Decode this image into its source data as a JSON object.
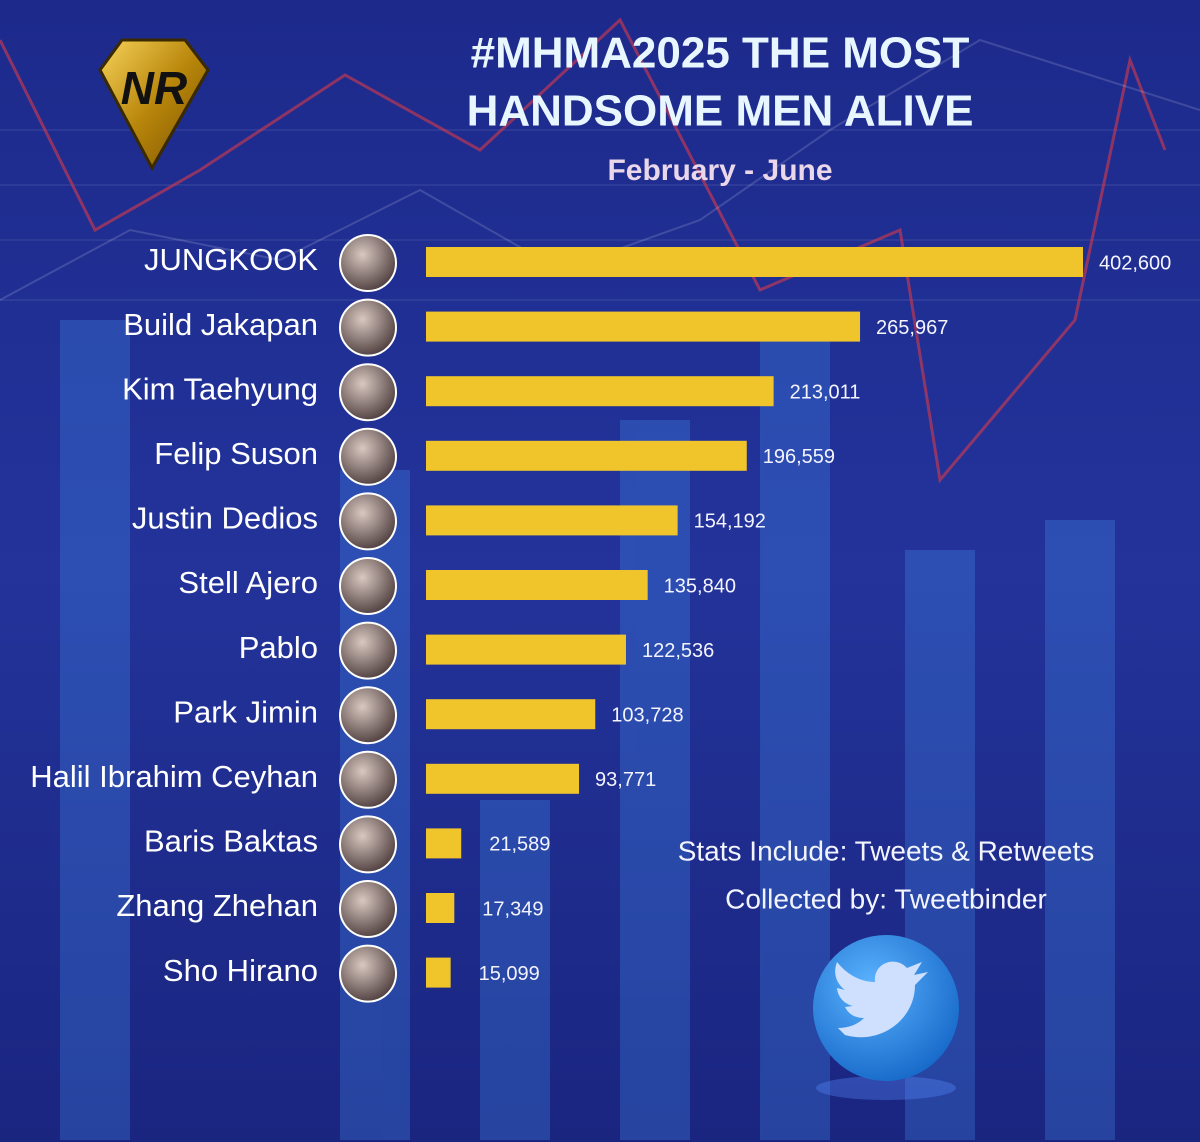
{
  "logo": "NR",
  "chart_data": {
    "type": "bar",
    "orientation": "horizontal",
    "title": [
      "#MHMA2025 THE MOST",
      "HANDSOME MEN ALIVE"
    ],
    "subtitle": "February - June",
    "categories": [
      "JUNGKOOK",
      "Build Jakapan",
      "Kim Taehyung",
      "Felip Suson",
      "Justin Dedios",
      "Stell Ajero",
      "Pablo",
      "Park Jimin",
      "Halil Ibrahim Ceyhan",
      "Baris Baktas",
      "Zhang Zhehan",
      "Sho Hirano"
    ],
    "values": [
      402600,
      265967,
      213011,
      196559,
      154192,
      135840,
      122536,
      103728,
      93771,
      21589,
      17349,
      15099
    ],
    "value_labels": [
      "402,600",
      "265,967",
      "213,011",
      "196,559",
      "154,192",
      "135,840",
      "122,536",
      "103,728",
      "93,771",
      "21,589",
      "17,349",
      "15,099"
    ],
    "color": "#f0c52c",
    "annotations": [
      "Stats Include: Tweets & Retweets",
      "Collected by: Tweetbinder"
    ]
  }
}
